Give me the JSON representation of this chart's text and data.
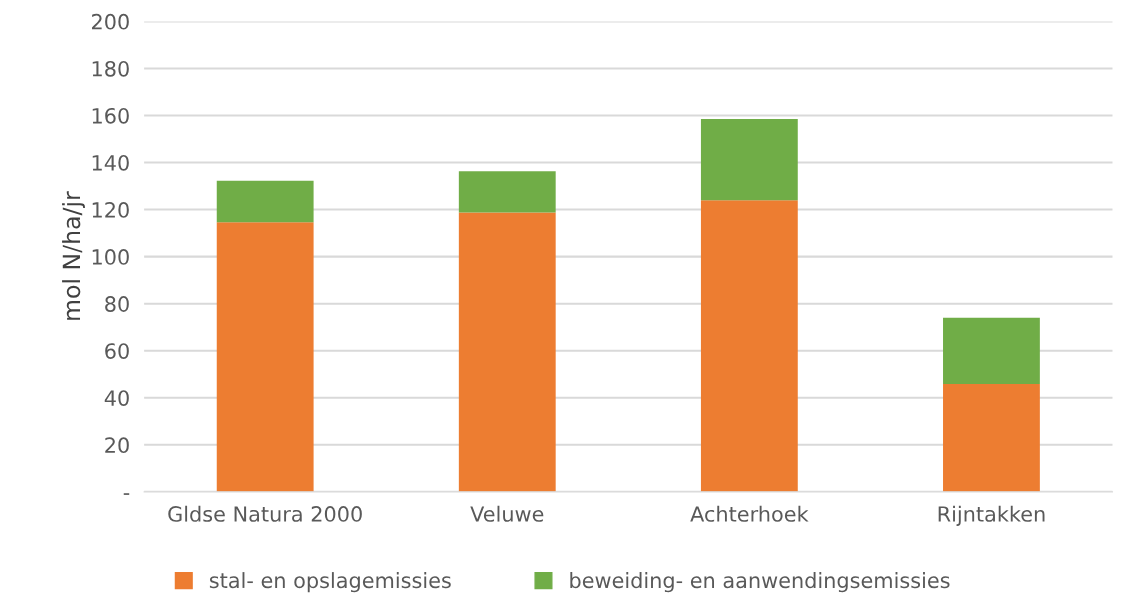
{
  "chart_data": {
    "type": "bar",
    "stacked": true,
    "ylabel": "mol N/ha/jr",
    "categories": [
      "Gldse Natura 2000",
      "Veluwe",
      "Achterhoek",
      "Rijntakken"
    ],
    "series": [
      {
        "name": "stal- en opslagemissies",
        "color": "#ed7d31",
        "values": [
          114.6,
          118.8,
          124,
          45.8
        ]
      },
      {
        "name": "beweiding- en aanwendingsemissies",
        "color": "#70ad47",
        "values": [
          17.7,
          17.5,
          34.5,
          28.2
        ]
      }
    ],
    "ylim": [
      0,
      200
    ],
    "yticks": [
      {
        "value": 0,
        "label": "-"
      },
      20,
      40,
      60,
      80,
      100,
      120,
      140,
      160,
      180,
      200
    ],
    "grid": "y",
    "legend": "bottom"
  }
}
